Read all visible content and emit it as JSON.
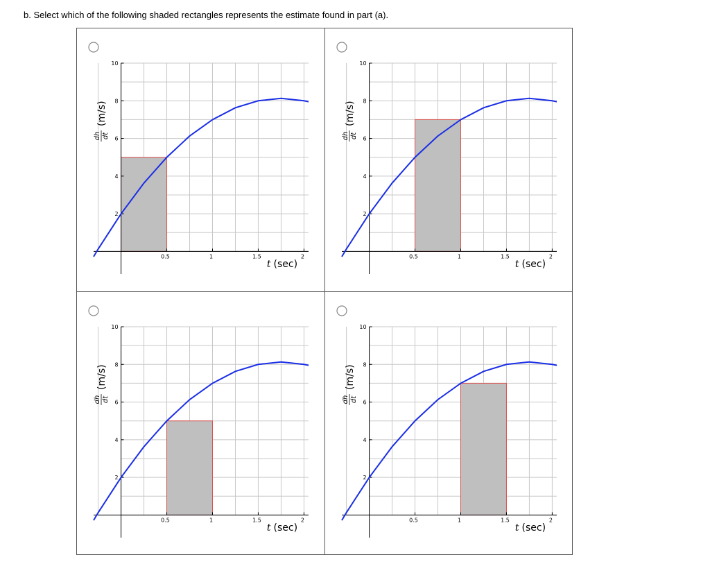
{
  "question": "b. Select which of the following shaded rectangles represents the estimate found in part (a).",
  "chart_data": [
    {
      "type": "line",
      "xlabel_var": "t",
      "xlabel_unit": "(sec)",
      "ylabel_num": "dh",
      "ylabel_den": "dt",
      "ylabel_unit": "(m/s)",
      "xlim": [
        -0.3,
        2.05
      ],
      "ylim": [
        -1.2,
        10
      ],
      "xticks": [
        0.5,
        1,
        1.5,
        2
      ],
      "yticks": [
        2,
        4,
        6,
        8,
        10
      ],
      "xgrid": [
        -0.25,
        0,
        0.25,
        0.5,
        0.75,
        1,
        1.25,
        1.5,
        1.75,
        2
      ],
      "ygrid": [
        0,
        1,
        2,
        3,
        4,
        5,
        6,
        7,
        8,
        9,
        10
      ],
      "x": [
        -0.3,
        -0.25,
        0,
        0.25,
        0.5,
        0.75,
        1,
        1.25,
        1.5,
        1.75,
        2,
        2.05
      ],
      "series": [
        {
          "color": "#1a2ee6",
          "values": [
            -0.28,
            0.13,
            2,
            3.63,
            5,
            6.13,
            7,
            7.63,
            8,
            8.13,
            8,
            7.95
          ]
        }
      ],
      "rect": {
        "x": [
          0,
          0.5
        ],
        "value": 5,
        "fill": "#bfbfbf",
        "stroke": "#d9534f"
      }
    },
    {
      "type": "line",
      "xlabel_var": "t",
      "xlabel_unit": "(sec)",
      "ylabel_num": "dh",
      "ylabel_den": "dt",
      "ylabel_unit": "(m/s)",
      "xlim": [
        -0.3,
        2.05
      ],
      "ylim": [
        -1.2,
        10
      ],
      "xticks": [
        0.5,
        1,
        1.5,
        2
      ],
      "yticks": [
        2,
        4,
        6,
        8,
        10
      ],
      "xgrid": [
        -0.25,
        0,
        0.25,
        0.5,
        0.75,
        1,
        1.25,
        1.5,
        1.75,
        2
      ],
      "ygrid": [
        0,
        1,
        2,
        3,
        4,
        5,
        6,
        7,
        8,
        9,
        10
      ],
      "x": [
        -0.3,
        -0.25,
        0,
        0.25,
        0.5,
        0.75,
        1,
        1.25,
        1.5,
        1.75,
        2,
        2.05
      ],
      "series": [
        {
          "color": "#1a2ee6",
          "values": [
            -0.28,
            0.13,
            2,
            3.63,
            5,
            6.13,
            7,
            7.63,
            8,
            8.13,
            8,
            7.95
          ]
        }
      ],
      "rect": {
        "x": [
          0.5,
          1
        ],
        "value": 7,
        "fill": "#bfbfbf",
        "stroke": "#d9534f"
      }
    },
    {
      "type": "line",
      "xlabel_var": "t",
      "xlabel_unit": "(sec)",
      "ylabel_num": "dh",
      "ylabel_den": "dt",
      "ylabel_unit": "(m/s)",
      "xlim": [
        -0.3,
        2.05
      ],
      "ylim": [
        -1.2,
        10
      ],
      "xticks": [
        0.5,
        1,
        1.5,
        2
      ],
      "yticks": [
        2,
        4,
        6,
        8,
        10
      ],
      "xgrid": [
        -0.25,
        0,
        0.25,
        0.5,
        0.75,
        1,
        1.25,
        1.5,
        1.75,
        2
      ],
      "ygrid": [
        0,
        1,
        2,
        3,
        4,
        5,
        6,
        7,
        8,
        9,
        10
      ],
      "x": [
        -0.3,
        -0.25,
        0,
        0.25,
        0.5,
        0.75,
        1,
        1.25,
        1.5,
        1.75,
        2,
        2.05
      ],
      "series": [
        {
          "color": "#1a2ee6",
          "values": [
            -0.28,
            0.13,
            2,
            3.63,
            5,
            6.13,
            7,
            7.63,
            8,
            8.13,
            8,
            7.95
          ]
        }
      ],
      "rect": {
        "x": [
          0.5,
          1
        ],
        "value": 5,
        "fill": "#bfbfbf",
        "stroke": "#d9534f"
      }
    },
    {
      "type": "line",
      "xlabel_var": "t",
      "xlabel_unit": "(sec)",
      "ylabel_num": "dh",
      "ylabel_den": "dt",
      "ylabel_unit": "(m/s)",
      "xlim": [
        -0.3,
        2.05
      ],
      "ylim": [
        -1.2,
        10
      ],
      "xticks": [
        0.5,
        1,
        1.5,
        2
      ],
      "yticks": [
        2,
        4,
        6,
        8,
        10
      ],
      "xgrid": [
        -0.25,
        0,
        0.25,
        0.5,
        0.75,
        1,
        1.25,
        1.5,
        1.75,
        2
      ],
      "ygrid": [
        0,
        1,
        2,
        3,
        4,
        5,
        6,
        7,
        8,
        9,
        10
      ],
      "x": [
        -0.3,
        -0.25,
        0,
        0.25,
        0.5,
        0.75,
        1,
        1.25,
        1.5,
        1.75,
        2,
        2.05
      ],
      "series": [
        {
          "color": "#1a2ee6",
          "values": [
            -0.28,
            0.13,
            2,
            3.63,
            5,
            6.13,
            7,
            7.63,
            8,
            8.13,
            8,
            7.95
          ]
        }
      ],
      "rect": {
        "x": [
          1,
          1.5
        ],
        "value": 7,
        "fill": "#bfbfbf",
        "stroke": "#d9534f"
      }
    }
  ]
}
